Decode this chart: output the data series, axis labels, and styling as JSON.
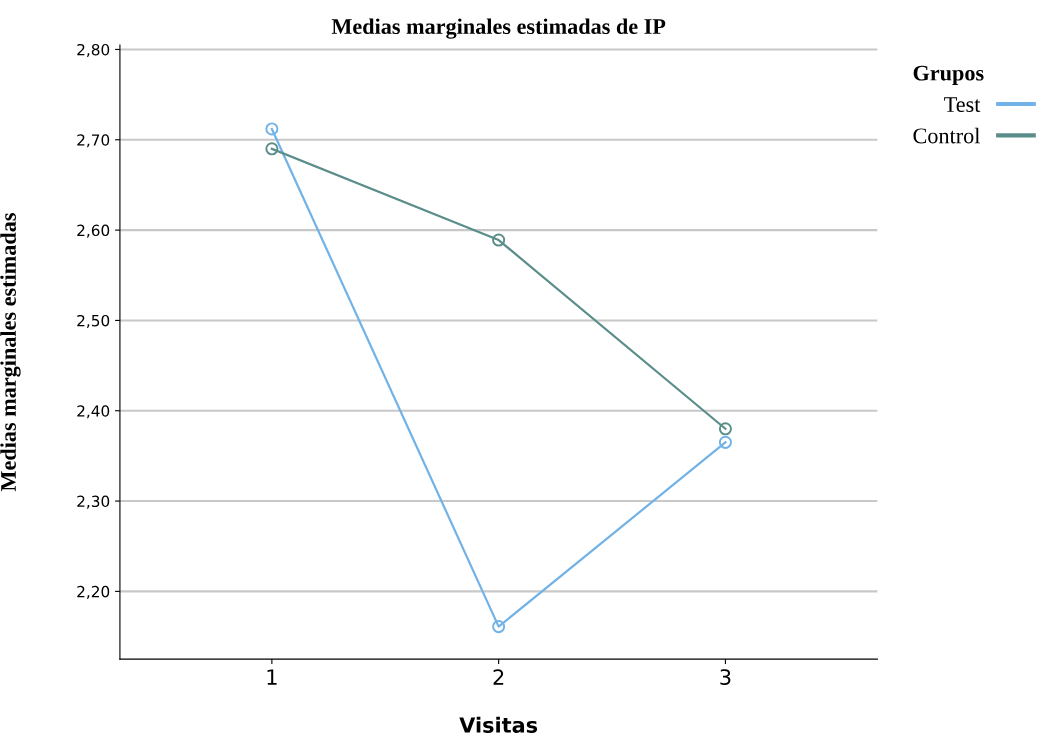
{
  "chart_data": {
    "type": "line",
    "title": "Medias marginales estimadas de IP",
    "xlabel": "Visitas",
    "ylabel": "Medias marginales estimadas",
    "legend_title": "Grupos",
    "categories": [
      "1",
      "2",
      "3"
    ],
    "series": [
      {
        "name": "Test",
        "color": "#72b2e6",
        "values": [
          2.712,
          2.161,
          2.365
        ]
      },
      {
        "name": "Control",
        "color": "#5b8e8a",
        "values": [
          2.69,
          2.589,
          2.38
        ]
      }
    ],
    "ylim": [
      2.125,
      2.805
    ],
    "yticks": [
      {
        "value": 2.2,
        "label": "2,20"
      },
      {
        "value": 2.3,
        "label": "2,30"
      },
      {
        "value": 2.4,
        "label": "2,40"
      },
      {
        "value": 2.5,
        "label": "2,50"
      },
      {
        "value": 2.6,
        "label": "2,60"
      },
      {
        "value": 2.7,
        "label": "2,70"
      },
      {
        "value": 2.8,
        "label": "2,80"
      }
    ],
    "grid": "y",
    "legend": "top right",
    "marker": "circle",
    "line_style": "solid"
  }
}
